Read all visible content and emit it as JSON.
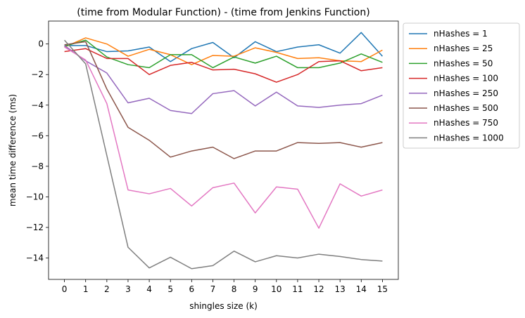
{
  "chart_data": {
    "type": "line",
    "title": "(time from Modular Function) - (time from Jenkins Function)",
    "xlabel": "shingles size (k)",
    "ylabel": "mean time difference (ms)",
    "xlim": [
      -0.75,
      15.75
    ],
    "ylim": [
      -15.4,
      1.5
    ],
    "xticks": [
      0,
      1,
      2,
      3,
      4,
      5,
      6,
      7,
      8,
      9,
      10,
      11,
      12,
      13,
      14,
      15
    ],
    "yticks": [
      0,
      -2,
      -4,
      -6,
      -8,
      -10,
      -12,
      -14
    ],
    "ytick_labels": [
      "0",
      "−2",
      "−4",
      "−6",
      "−8",
      "−10",
      "−12",
      "−14"
    ],
    "grid": false,
    "legend_position": "outside-top-right",
    "x": [
      0,
      1,
      2,
      3,
      4,
      5,
      6,
      7,
      8,
      9,
      10,
      11,
      12,
      13,
      14,
      15
    ],
    "series": [
      {
        "name": "nHashes = 1",
        "color": "#1f77b4",
        "values": [
          -0.1,
          -0.1,
          -0.5,
          -0.45,
          -0.2,
          -1.15,
          -0.3,
          0.1,
          -0.9,
          0.15,
          -0.5,
          -0.2,
          -0.05,
          -0.6,
          0.75,
          -0.8
        ]
      },
      {
        "name": "nHashes = 25",
        "color": "#ff7f0e",
        "values": [
          -0.2,
          0.4,
          0.0,
          -0.8,
          -0.35,
          -0.7,
          -1.35,
          -0.75,
          -0.8,
          -0.25,
          -0.55,
          -0.95,
          -0.9,
          -1.1,
          -1.15,
          -0.4
        ]
      },
      {
        "name": "nHashes = 50",
        "color": "#2ca02c",
        "values": [
          -0.15,
          0.25,
          -0.85,
          -1.35,
          -1.55,
          -0.7,
          -0.7,
          -1.55,
          -0.85,
          -1.25,
          -0.8,
          -1.55,
          -1.55,
          -1.25,
          -0.65,
          -1.2
        ]
      },
      {
        "name": "nHashes = 100",
        "color": "#d62728",
        "values": [
          -0.5,
          -0.3,
          -0.95,
          -0.95,
          -2.0,
          -1.4,
          -1.2,
          -1.7,
          -1.65,
          -1.95,
          -2.5,
          -2.0,
          -1.15,
          -1.1,
          -1.75,
          -1.55
        ]
      },
      {
        "name": "nHashes = 250",
        "color": "#9467bd",
        "values": [
          -0.1,
          -1.1,
          -1.9,
          -3.85,
          -3.55,
          -4.35,
          -4.55,
          -3.25,
          -3.05,
          -4.05,
          -3.15,
          -4.05,
          -4.15,
          -4.0,
          -3.9,
          -3.35
        ]
      },
      {
        "name": "nHashes = 500",
        "color": "#8c564b",
        "values": [
          -0.05,
          0.15,
          -2.95,
          -5.45,
          -6.3,
          -7.4,
          -7.0,
          -6.75,
          -7.5,
          -7.0,
          -7.0,
          -6.45,
          -6.5,
          -6.45,
          -6.75,
          -6.45
        ]
      },
      {
        "name": "nHashes = 750",
        "color": "#e377c2",
        "values": [
          -0.2,
          -1.05,
          -3.9,
          -9.55,
          -9.8,
          -9.45,
          -10.6,
          -9.4,
          -9.1,
          -11.05,
          -9.35,
          -9.5,
          -12.05,
          -9.15,
          -9.95,
          -9.55
        ]
      },
      {
        "name": "nHashes = 1000",
        "color": "#7f7f7f",
        "values": [
          0.25,
          -1.3,
          -7.3,
          -13.3,
          -14.65,
          -13.95,
          -14.7,
          -14.5,
          -13.55,
          -14.25,
          -13.85,
          -14.0,
          -13.75,
          -13.9,
          -14.1,
          -14.2
        ]
      }
    ]
  }
}
